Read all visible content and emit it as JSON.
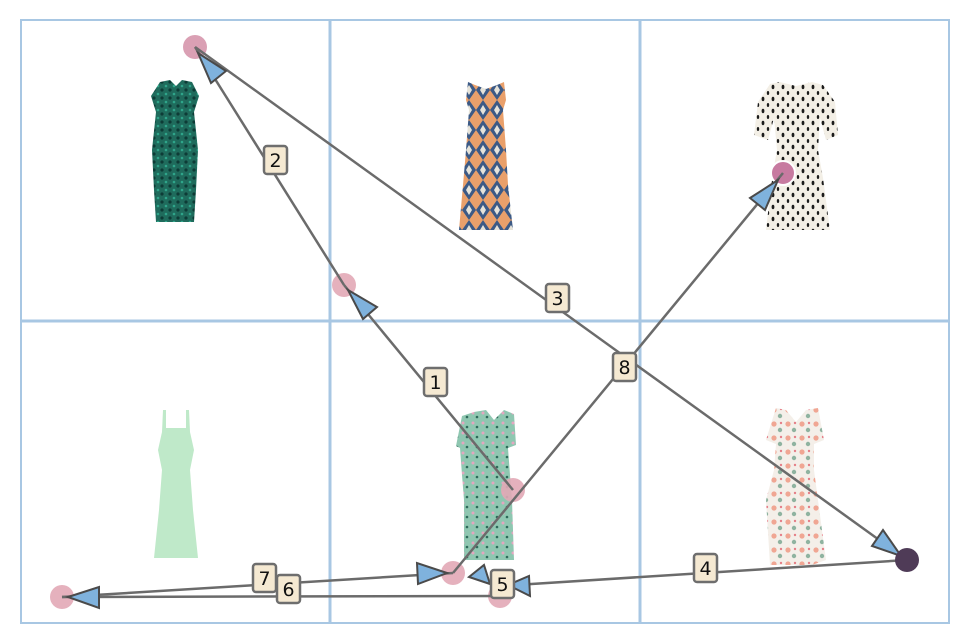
{
  "products": [
    {
      "id": "green-floral-sheath-dress",
      "cell": "top-left"
    },
    {
      "id": "geometric-print-tiered-dress",
      "cell": "top-middle"
    },
    {
      "id": "dalmatian-print-smock-dress",
      "cell": "top-right"
    },
    {
      "id": "mint-strappy-midi-dress",
      "cell": "bottom-left"
    },
    {
      "id": "floral-wrap-midi-dress",
      "cell": "bottom-middle"
    },
    {
      "id": "floral-tiered-maxi-dress",
      "cell": "bottom-right"
    }
  ],
  "steps": [
    {
      "label": "1"
    },
    {
      "label": "2"
    },
    {
      "label": "3"
    },
    {
      "label": "4"
    },
    {
      "label": "5"
    },
    {
      "label": "6"
    },
    {
      "label": "7"
    },
    {
      "label": "8"
    }
  ],
  "colors": {
    "grid": "#a8c7e3",
    "arrow": "#6b6b6b",
    "arrowhead": "#7fb2dd",
    "point": "#e2a9b6",
    "point_active": "#c77aa0",
    "end_point": "#4f3b57",
    "label_bg": "#f5e9d2",
    "label_border": "#6e6e6e"
  }
}
